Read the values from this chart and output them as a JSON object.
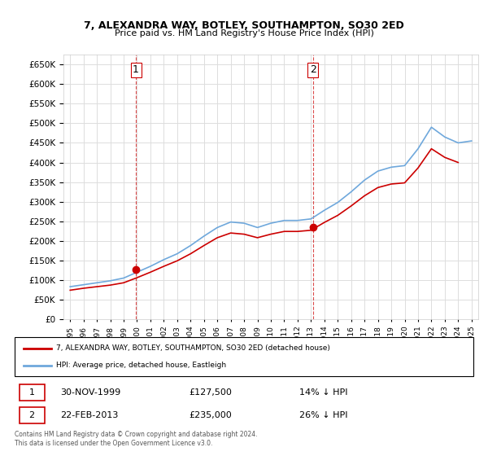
{
  "title": "7, ALEXANDRA WAY, BOTLEY, SOUTHAMPTON, SO30 2ED",
  "subtitle": "Price paid vs. HM Land Registry's House Price Index (HPI)",
  "legend_line1": "7, ALEXANDRA WAY, BOTLEY, SOUTHAMPTON, SO30 2ED (detached house)",
  "legend_line2": "HPI: Average price, detached house, Eastleigh",
  "table_rows": [
    {
      "num": "1",
      "date": "30-NOV-1999",
      "price": "£127,500",
      "pct": "14% ↓ HPI"
    },
    {
      "num": "2",
      "date": "22-FEB-2013",
      "price": "£235,000",
      "pct": "26% ↓ HPI"
    }
  ],
  "footnote": "Contains HM Land Registry data © Crown copyright and database right 2024.\nThis data is licensed under the Open Government Licence v3.0.",
  "sale1_date": 1999.916,
  "sale1_price": 127500,
  "sale2_date": 2013.14,
  "sale2_price": 235000,
  "hpi_color": "#6fa8dc",
  "price_color": "#cc0000",
  "marker_color": "#cc0000",
  "vline_color": "#cc0000",
  "background_color": "#ffffff",
  "grid_color": "#dddddd",
  "ylim": [
    0,
    675000
  ],
  "yticks": [
    0,
    50000,
    100000,
    150000,
    200000,
    250000,
    300000,
    350000,
    400000,
    450000,
    500000,
    550000,
    600000,
    650000
  ],
  "hpi_years": [
    1995,
    1996,
    1997,
    1998,
    1999,
    2000,
    2001,
    2002,
    2003,
    2004,
    2005,
    2006,
    2007,
    2008,
    2009,
    2010,
    2011,
    2012,
    2013,
    2014,
    2015,
    2016,
    2017,
    2018,
    2019,
    2020,
    2021,
    2022,
    2023,
    2024,
    2025
  ],
  "hpi_values": [
    83000,
    88000,
    93000,
    98000,
    105000,
    120000,
    135000,
    152000,
    167000,
    188000,
    212000,
    234000,
    248000,
    245000,
    234000,
    245000,
    252000,
    252000,
    256000,
    278000,
    298000,
    325000,
    355000,
    378000,
    388000,
    392000,
    435000,
    490000,
    465000,
    450000,
    455000
  ],
  "price_years": [
    1995,
    1996,
    1997,
    1998,
    1999,
    2000,
    2001,
    2002,
    2003,
    2004,
    2005,
    2006,
    2007,
    2008,
    2009,
    2010,
    2011,
    2012,
    2013,
    2014,
    2015,
    2016,
    2017,
    2018,
    2019,
    2020,
    2021,
    2022,
    2023,
    2024
  ],
  "price_values": [
    74000,
    79000,
    83000,
    87000,
    93000,
    106000,
    120000,
    135000,
    149000,
    167000,
    188000,
    208000,
    220000,
    217000,
    208000,
    217000,
    224000,
    224000,
    227000,
    247000,
    265000,
    289000,
    315000,
    336000,
    345000,
    348000,
    386000,
    435000,
    413000,
    400000
  ]
}
